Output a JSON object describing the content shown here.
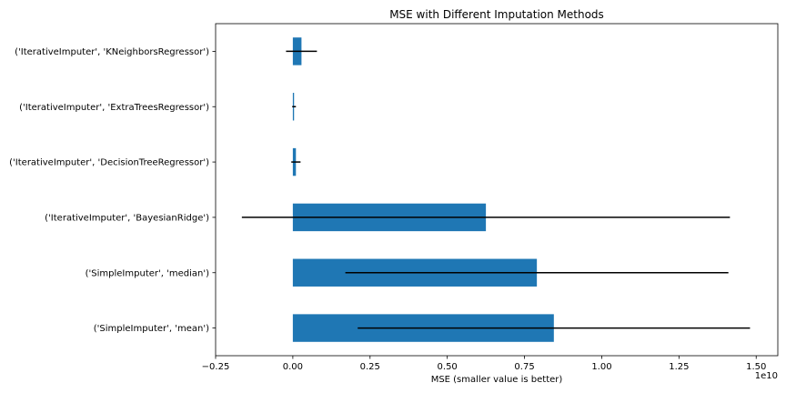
{
  "chart_data": {
    "type": "bar",
    "orientation": "horizontal",
    "title": "MSE with Different Imputation Methods",
    "xlabel": "MSE (smaller value is better)",
    "ylabel": "",
    "x_offset_label": "1e10",
    "xlim": [
      -0.25,
      1.57
    ],
    "x_ticks": [
      -0.25,
      0.0,
      0.25,
      0.5,
      0.75,
      1.0,
      1.25,
      1.5
    ],
    "x_tick_labels": [
      "−0.25",
      "0.00",
      "0.25",
      "0.50",
      "0.75",
      "1.00",
      "1.25",
      "1.50"
    ],
    "categories": [
      "('SimpleImputer', 'mean')",
      "('SimpleImputer', 'median')",
      "('IterativeImputer', 'BayesianRidge')",
      "('IterativeImputer', 'DecisionTreeRegressor')",
      "('IterativeImputer', 'ExtraTreesRegressor')",
      "('IterativeImputer', 'KNeighborsRegressor')"
    ],
    "values": [
      0.845,
      0.79,
      0.625,
      0.01,
      0.004,
      0.028
    ],
    "errors": [
      0.635,
      0.62,
      0.79,
      0.015,
      0.006,
      0.05
    ],
    "bar_color": "#1f77b4",
    "error_color": "#000000",
    "grid": false,
    "legend": false
  }
}
